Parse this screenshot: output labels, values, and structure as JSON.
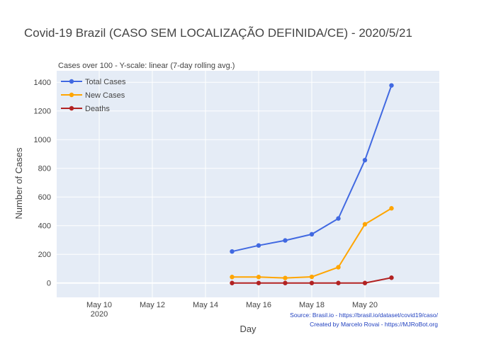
{
  "chart_data": {
    "type": "line",
    "title": "Covid-19 Brazil (CASO SEM LOCALIZAÇÃO DEFINIDA/CE) - 2020/5/21",
    "subtitle": "Cases over 100 - Y-scale: linear (7-day rolling avg.)",
    "xlabel": "Day",
    "ylabel": "Number of Cases",
    "x": [
      "May 15",
      "May 16",
      "May 17",
      "May 18",
      "May 19",
      "May 20",
      "May 21"
    ],
    "x_day_index": [
      15,
      16,
      17,
      18,
      19,
      20,
      21
    ],
    "xlim": [
      8.4,
      22.8
    ],
    "ylim": [
      -100,
      1480
    ],
    "x_ticks": [
      {
        "day": 10,
        "label": "May 10",
        "sublabel": "2020"
      },
      {
        "day": 12,
        "label": "May 12",
        "sublabel": ""
      },
      {
        "day": 14,
        "label": "May 14",
        "sublabel": ""
      },
      {
        "day": 16,
        "label": "May 16",
        "sublabel": ""
      },
      {
        "day": 18,
        "label": "May 18",
        "sublabel": ""
      },
      {
        "day": 20,
        "label": "May 20",
        "sublabel": ""
      }
    ],
    "y_ticks": [
      0,
      200,
      400,
      600,
      800,
      1000,
      1200,
      1400
    ],
    "series": [
      {
        "name": "Total Cases",
        "color": "#4169e1",
        "values": [
          220,
          262,
          297,
          340,
          450,
          857,
          1378
        ]
      },
      {
        "name": "New Cases",
        "color": "#ffa500",
        "values": [
          42,
          42,
          35,
          43,
          110,
          410,
          521
        ]
      },
      {
        "name": "Deaths",
        "color": "#b22222",
        "values": [
          0,
          0,
          0,
          0,
          0,
          0,
          37
        ]
      }
    ],
    "grid": true,
    "legend_position": "top-left",
    "plot_background": "#e5ecf6",
    "source_lines": [
      "Source: Brasil.io - https://brasil.io/dataset/covid19/caso/",
      "Created by Marcelo Rovai - https://MJRoBot.org"
    ]
  }
}
